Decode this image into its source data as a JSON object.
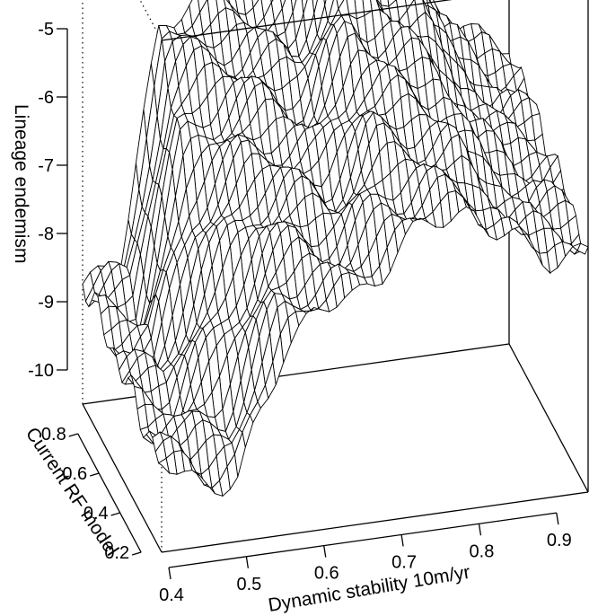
{
  "chart_data": {
    "type": "surface3d",
    "zlabel": "Lineage endemism",
    "xlabel": "Dynamic stability 10m/yr",
    "ylabel": "Current RF model",
    "zticks": [
      "-5",
      "-6",
      "-7",
      "-8",
      "-9",
      "-10"
    ],
    "xticks": [
      "0.4",
      "0.5",
      "0.6",
      "0.7",
      "0.8",
      "0.9"
    ],
    "yticks": [
      "0.2",
      "0.4",
      "0.6",
      "0.8"
    ],
    "zlim": [
      -10.3,
      -5
    ],
    "xlim": [
      0.4,
      0.95
    ],
    "ylim": [
      0.15,
      0.9
    ],
    "surface_description": "Wireframe surface of lineage endemism over dynamic stability and current RF model",
    "x_profile": {
      "x": [
        0.4,
        0.45,
        0.5,
        0.53,
        0.56,
        0.6,
        0.65,
        0.7,
        0.75,
        0.8,
        0.85,
        0.9,
        0.95
      ],
      "z_at_high_rf": [
        -9.0,
        -8.9,
        -6.4,
        -6.3,
        -6.3,
        -6.2,
        -6.2,
        -5.0,
        -5.3,
        -5.6,
        -6.6,
        -7.1,
        -7.2
      ],
      "z_at_low_rf": [
        -9.4,
        -9.6,
        -9.7,
        -9.0,
        -8.3,
        -8.0,
        -8.0,
        -7.5,
        -7.3,
        -7.2,
        -7.6,
        -7.8,
        -7.8
      ]
    },
    "grid": false,
    "box": true
  }
}
